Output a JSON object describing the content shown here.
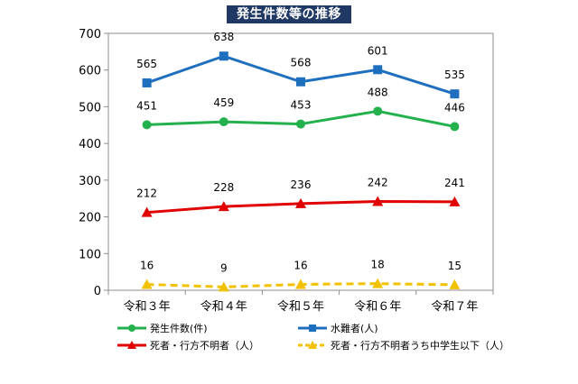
{
  "chart_data": {
    "type": "line",
    "title": "発生件数等の推移",
    "categories": [
      "令和３年",
      "令和４年",
      "令和５年",
      "令和６年",
      "令和７年"
    ],
    "ylim": [
      0,
      700
    ],
    "yticks": [
      0,
      100,
      200,
      300,
      400,
      500,
      600,
      700
    ],
    "grid": false,
    "legend_position": "bottom",
    "series": [
      {
        "name": "発生件数(件)",
        "values": [
          451,
          459,
          453,
          488,
          446
        ],
        "color": "#22b14c",
        "marker": "circle",
        "dashed": false
      },
      {
        "name": "水難者(人)",
        "values": [
          565,
          638,
          568,
          601,
          535
        ],
        "color": "#1f6fbf",
        "marker": "square",
        "dashed": false
      },
      {
        "name": "死者・行方不明者（人）",
        "values": [
          212,
          228,
          236,
          242,
          241
        ],
        "color": "#e00000",
        "marker": "triangle",
        "dashed": false
      },
      {
        "name": "死者・行方不明者うち中学生以下（人）",
        "values": [
          16,
          9,
          16,
          18,
          15
        ],
        "color": "#f2c200",
        "marker": "triangle",
        "dashed": true
      }
    ]
  }
}
